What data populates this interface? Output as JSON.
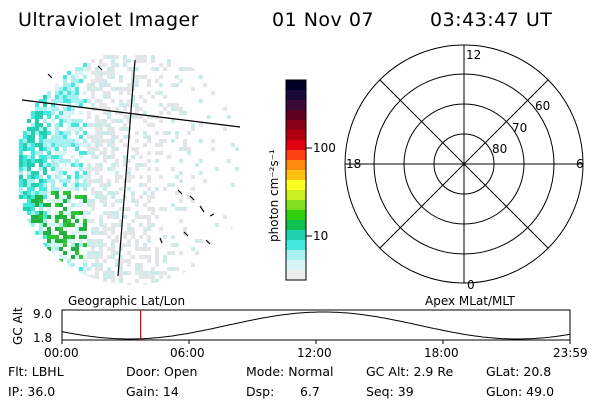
{
  "header": {
    "title": "Ultraviolet Imager",
    "date": "01 Nov 07",
    "time": "03:43:47 UT"
  },
  "colorbar": {
    "label": "photon cm⁻²s⁻¹",
    "ticks": [
      "100",
      "10"
    ],
    "colors": [
      "#000028",
      "#1a0a3a",
      "#3a0a3a",
      "#600020",
      "#8a0018",
      "#b00010",
      "#e00010",
      "#ff4010",
      "#ff8a10",
      "#ffc010",
      "#ffff20",
      "#c8f020",
      "#80e020",
      "#30d010",
      "#10c050",
      "#20d0b0",
      "#40e8e0",
      "#a8f0f0",
      "#d8f4f4",
      "#eeeeee"
    ]
  },
  "polar_plot": {
    "mlt_labels": {
      "top": "12",
      "bottom": "0",
      "left": "18",
      "right": "6"
    },
    "lat_labels": [
      "60",
      "70",
      "80"
    ]
  },
  "orbit_plot": {
    "ylabel": "GC Alt",
    "left_title": "Geographic Lat/Lon",
    "right_title": "Apex MLat/MLT",
    "y_ticks": [
      "9.0",
      "1.8"
    ],
    "x_ticks": [
      "00:00",
      "06:00",
      "12:00",
      "18:00",
      "23:59"
    ],
    "marker_color": "#cc0000"
  },
  "info": {
    "flt": "Flt: LBHL",
    "door": "Door: Open",
    "mode": "Mode: Normal",
    "gc_alt": "GC Alt: 2.9 Re",
    "glat": "GLat: 20.8",
    "ip": "IP: 36.0",
    "gain": "Gain: 14",
    "dsp_label": "Dsp:",
    "dsp_value": "6.7",
    "seq": "Seq: 39",
    "glon": "GLon: 49.0"
  }
}
